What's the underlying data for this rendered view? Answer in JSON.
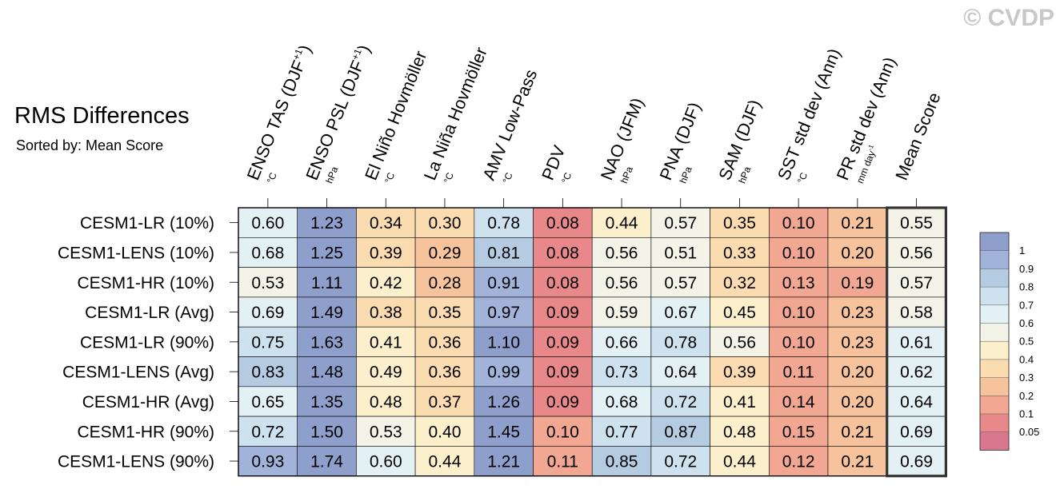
{
  "title": "RMS Differences",
  "subtitle": "Sorted by: Mean Score",
  "watermark": "© CVDP",
  "chart_data": {
    "type": "heatmap",
    "title": "RMS Differences",
    "subtitle": "Sorted by: Mean Score",
    "columns": [
      {
        "label": "ENSO TAS (DJF",
        "sup": "+1",
        "tail": ")",
        "unit": "°C"
      },
      {
        "label": "ENSO PSL (DJF",
        "sup": "+1",
        "tail": ")",
        "unit": "hPa"
      },
      {
        "label": "El Niño Hovmöller",
        "sup": "",
        "tail": "",
        "unit": "°C"
      },
      {
        "label": "La Niña Hovmöller",
        "sup": "",
        "tail": "",
        "unit": "°C"
      },
      {
        "label": "AMV Low-Pass",
        "sup": "",
        "tail": "",
        "unit": "°C"
      },
      {
        "label": "PDV",
        "sup": "",
        "tail": "",
        "unit": "°C"
      },
      {
        "label": "NAO (JFM)",
        "sup": "",
        "tail": "",
        "unit": "hPa"
      },
      {
        "label": "PNA (DJF)",
        "sup": "",
        "tail": "",
        "unit": "hPa"
      },
      {
        "label": "SAM (DJF)",
        "sup": "",
        "tail": "",
        "unit": "hPa"
      },
      {
        "label": "SST std dev (Ann)",
        "sup": "",
        "tail": "",
        "unit": "°C"
      },
      {
        "label": "PR std dev (Ann)",
        "sup": "",
        "tail": "",
        "unit": "mm day",
        "unit_sup": "-1"
      },
      {
        "label": "Mean Score",
        "sup": "",
        "tail": "",
        "unit": ""
      }
    ],
    "rows": [
      "CESM1-LR (10%)",
      "CESM1-LENS (10%)",
      "CESM1-HR (10%)",
      "CESM1-LR (Avg)",
      "CESM1-LR (90%)",
      "CESM1-LENS (Avg)",
      "CESM1-HR (Avg)",
      "CESM1-HR (90%)",
      "CESM1-LENS (90%)"
    ],
    "values": [
      [
        "0.60",
        "1.23",
        "0.34",
        "0.30",
        "0.78",
        "0.08",
        "0.44",
        "0.57",
        "0.35",
        "0.10",
        "0.21",
        "0.55"
      ],
      [
        "0.68",
        "1.25",
        "0.39",
        "0.29",
        "0.81",
        "0.08",
        "0.56",
        "0.51",
        "0.33",
        "0.10",
        "0.20",
        "0.56"
      ],
      [
        "0.53",
        "1.11",
        "0.42",
        "0.28",
        "0.91",
        "0.08",
        "0.56",
        "0.57",
        "0.32",
        "0.13",
        "0.19",
        "0.57"
      ],
      [
        "0.69",
        "1.49",
        "0.38",
        "0.35",
        "0.97",
        "0.09",
        "0.59",
        "0.67",
        "0.45",
        "0.10",
        "0.23",
        "0.58"
      ],
      [
        "0.75",
        "1.63",
        "0.41",
        "0.36",
        "1.10",
        "0.09",
        "0.66",
        "0.78",
        "0.56",
        "0.10",
        "0.23",
        "0.61"
      ],
      [
        "0.83",
        "1.48",
        "0.49",
        "0.36",
        "0.99",
        "0.09",
        "0.73",
        "0.64",
        "0.39",
        "0.11",
        "0.20",
        "0.62"
      ],
      [
        "0.65",
        "1.35",
        "0.48",
        "0.37",
        "1.26",
        "0.09",
        "0.68",
        "0.72",
        "0.41",
        "0.14",
        "0.20",
        "0.64"
      ],
      [
        "0.72",
        "1.50",
        "0.53",
        "0.40",
        "1.45",
        "0.10",
        "0.77",
        "0.87",
        "0.48",
        "0.15",
        "0.21",
        "0.69"
      ],
      [
        "0.93",
        "1.74",
        "0.60",
        "0.44",
        "1.21",
        "0.11",
        "0.85",
        "0.72",
        "0.44",
        "0.12",
        "0.21",
        "0.69"
      ]
    ],
    "colorbar": {
      "levels": [
        "1",
        "0.9",
        "0.8",
        "0.7",
        "0.6",
        "0.5",
        "0.4",
        "0.3",
        "0.2",
        "0.1",
        "0.05"
      ],
      "colors": [
        "#8f9fcc",
        "#a1b3d8",
        "#b5cbe2",
        "#cde2ee",
        "#e4f1f4",
        "#f4f3e8",
        "#fbefcc",
        "#fbdcb1",
        "#f6c39c",
        "#f1a792",
        "#e8888a",
        "#d9788c"
      ]
    },
    "highlight_column": "Mean Score"
  }
}
